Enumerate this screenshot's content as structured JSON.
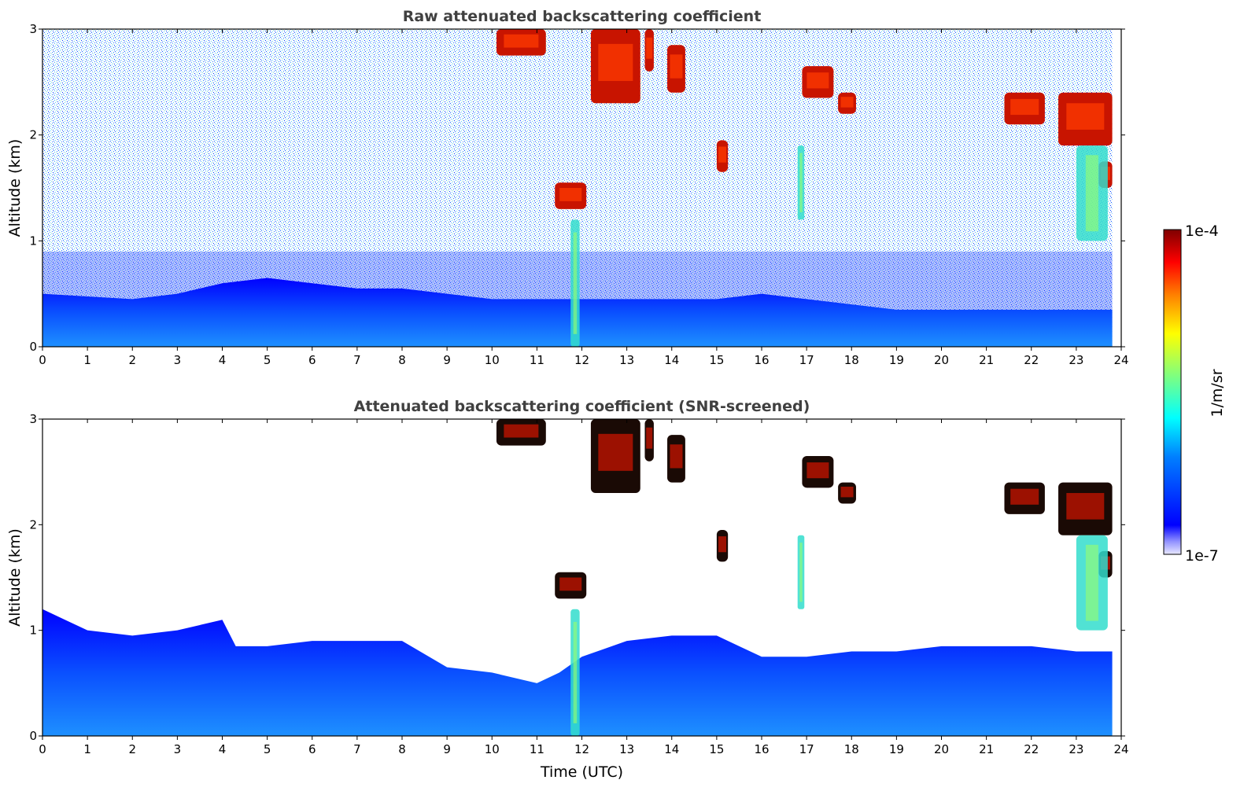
{
  "chart_data": [
    {
      "type": "heatmap",
      "title": "Raw attenuated backscattering coefficient",
      "xlabel": "",
      "ylabel": "Altitude (km)",
      "xlim": [
        0,
        24
      ],
      "ylim": [
        0,
        3
      ],
      "x_ticks": [
        "0",
        "1",
        "2",
        "3",
        "4",
        "5",
        "6",
        "7",
        "8",
        "9",
        "10",
        "11",
        "12",
        "13",
        "14",
        "15",
        "16",
        "17",
        "18",
        "19",
        "20",
        "21",
        "22",
        "23",
        "24"
      ],
      "y_ticks": [
        "0",
        "1",
        "2",
        "3"
      ],
      "screened": false,
      "boundary_layer_top_km": [
        [
          0,
          0.5
        ],
        [
          2,
          0.45
        ],
        [
          3,
          0.5
        ],
        [
          4,
          0.6
        ],
        [
          5,
          0.65
        ],
        [
          6,
          0.6
        ],
        [
          7,
          0.55
        ],
        [
          8,
          0.55
        ],
        [
          9,
          0.5
        ],
        [
          10,
          0.45
        ],
        [
          11,
          0.45
        ],
        [
          12,
          0.45
        ],
        [
          13,
          0.45
        ],
        [
          14,
          0.45
        ],
        [
          15,
          0.45
        ],
        [
          16,
          0.5
        ],
        [
          17,
          0.45
        ],
        [
          18,
          0.4
        ],
        [
          19,
          0.35
        ],
        [
          20,
          0.35
        ],
        [
          21,
          0.35
        ],
        [
          22,
          0.35
        ],
        [
          23,
          0.35
        ],
        [
          23.8,
          0.35
        ]
      ],
      "cloud_features": [
        {
          "t_start": 10.1,
          "t_end": 11.2,
          "base_km": 2.75,
          "top_km": 3.0,
          "intensity": "high"
        },
        {
          "t_start": 11.4,
          "t_end": 12.1,
          "base_km": 1.3,
          "top_km": 1.55,
          "intensity": "high"
        },
        {
          "t_start": 12.2,
          "t_end": 13.3,
          "base_km": 2.3,
          "top_km": 3.0,
          "intensity": "high"
        },
        {
          "t_start": 13.4,
          "t_end": 13.6,
          "base_km": 2.6,
          "top_km": 3.0,
          "intensity": "high"
        },
        {
          "t_start": 13.9,
          "t_end": 14.3,
          "base_km": 2.4,
          "top_km": 2.85,
          "intensity": "high"
        },
        {
          "t_start": 15.0,
          "t_end": 15.25,
          "base_km": 1.65,
          "top_km": 1.95,
          "intensity": "high"
        },
        {
          "t_start": 16.9,
          "t_end": 17.6,
          "base_km": 2.35,
          "top_km": 2.65,
          "intensity": "high"
        },
        {
          "t_start": 17.7,
          "t_end": 18.1,
          "base_km": 2.2,
          "top_km": 2.4,
          "intensity": "high"
        },
        {
          "t_start": 21.4,
          "t_end": 22.3,
          "base_km": 2.1,
          "top_km": 2.4,
          "intensity": "high"
        },
        {
          "t_start": 22.6,
          "t_end": 23.8,
          "base_km": 1.9,
          "top_km": 2.4,
          "intensity": "high"
        },
        {
          "t_start": 23.5,
          "t_end": 23.8,
          "base_km": 1.5,
          "top_km": 1.75,
          "intensity": "high"
        },
        {
          "t_start": 23.0,
          "t_end": 23.7,
          "base_km": 1.0,
          "top_km": 1.9,
          "intensity": "medium"
        },
        {
          "t_start": 11.75,
          "t_end": 11.95,
          "base_km": 0.0,
          "top_km": 1.2,
          "intensity": "medium"
        },
        {
          "t_start": 16.8,
          "t_end": 16.95,
          "base_km": 1.2,
          "top_km": 1.9,
          "intensity": "medium"
        }
      ]
    },
    {
      "type": "heatmap",
      "title": "Attenuated backscattering coefficient (SNR-screened)",
      "xlabel": "Time (UTC)",
      "ylabel": "Altitude (km)",
      "xlim": [
        0,
        24
      ],
      "ylim": [
        0,
        3
      ],
      "x_ticks": [
        "0",
        "1",
        "2",
        "3",
        "4",
        "5",
        "6",
        "7",
        "8",
        "9",
        "10",
        "11",
        "12",
        "13",
        "14",
        "15",
        "16",
        "17",
        "18",
        "19",
        "20",
        "21",
        "22",
        "23",
        "24"
      ],
      "y_ticks": [
        "0",
        "1",
        "2",
        "3"
      ],
      "screened": true,
      "boundary_layer_top_km": [
        [
          0,
          1.2
        ],
        [
          0.5,
          1.1
        ],
        [
          1,
          1.0
        ],
        [
          2,
          0.95
        ],
        [
          3,
          1.0
        ],
        [
          4,
          1.1
        ],
        [
          4.3,
          0.85
        ],
        [
          5,
          0.85
        ],
        [
          6,
          0.9
        ],
        [
          7,
          0.9
        ],
        [
          8,
          0.9
        ],
        [
          9,
          0.65
        ],
        [
          10,
          0.6
        ],
        [
          11,
          0.5
        ],
        [
          11.5,
          0.6
        ],
        [
          12,
          0.75
        ],
        [
          13,
          0.9
        ],
        [
          14,
          0.95
        ],
        [
          15,
          0.95
        ],
        [
          15.5,
          0.85
        ],
        [
          16,
          0.75
        ],
        [
          17,
          0.75
        ],
        [
          18,
          0.8
        ],
        [
          19,
          0.8
        ],
        [
          20,
          0.85
        ],
        [
          21,
          0.85
        ],
        [
          22,
          0.85
        ],
        [
          23,
          0.8
        ],
        [
          23.8,
          0.8
        ]
      ],
      "cloud_features": [
        {
          "t_start": 10.1,
          "t_end": 11.2,
          "base_km": 2.75,
          "top_km": 3.0,
          "intensity": "high"
        },
        {
          "t_start": 11.4,
          "t_end": 12.1,
          "base_km": 1.3,
          "top_km": 1.55,
          "intensity": "high"
        },
        {
          "t_start": 12.2,
          "t_end": 13.3,
          "base_km": 2.3,
          "top_km": 3.0,
          "intensity": "high"
        },
        {
          "t_start": 13.4,
          "t_end": 13.6,
          "base_km": 2.6,
          "top_km": 3.0,
          "intensity": "high"
        },
        {
          "t_start": 13.9,
          "t_end": 14.3,
          "base_km": 2.4,
          "top_km": 2.85,
          "intensity": "high"
        },
        {
          "t_start": 15.0,
          "t_end": 15.25,
          "base_km": 1.65,
          "top_km": 1.95,
          "intensity": "high"
        },
        {
          "t_start": 16.9,
          "t_end": 17.6,
          "base_km": 2.35,
          "top_km": 2.65,
          "intensity": "high"
        },
        {
          "t_start": 17.7,
          "t_end": 18.1,
          "base_km": 2.2,
          "top_km": 2.4,
          "intensity": "high"
        },
        {
          "t_start": 21.4,
          "t_end": 22.3,
          "base_km": 2.1,
          "top_km": 2.4,
          "intensity": "high"
        },
        {
          "t_start": 22.6,
          "t_end": 23.8,
          "base_km": 1.9,
          "top_km": 2.4,
          "intensity": "high"
        },
        {
          "t_start": 23.5,
          "t_end": 23.8,
          "base_km": 1.5,
          "top_km": 1.75,
          "intensity": "high"
        },
        {
          "t_start": 23.0,
          "t_end": 23.7,
          "base_km": 1.0,
          "top_km": 1.9,
          "intensity": "medium"
        },
        {
          "t_start": 11.75,
          "t_end": 11.95,
          "base_km": 0.0,
          "top_km": 1.2,
          "intensity": "medium"
        },
        {
          "t_start": 16.8,
          "t_end": 16.95,
          "base_km": 1.2,
          "top_km": 1.9,
          "intensity": "medium"
        }
      ]
    }
  ],
  "colorbar": {
    "max_label": "1e-4",
    "min_label": "1e-7",
    "unit_label": "1/m/sr",
    "colormap": "jet",
    "colors": [
      "#00007f",
      "#0000ff",
      "#007fff",
      "#00ffff",
      "#7fff7f",
      "#ffff00",
      "#ff7f00",
      "#ff0000",
      "#7f0000"
    ]
  }
}
